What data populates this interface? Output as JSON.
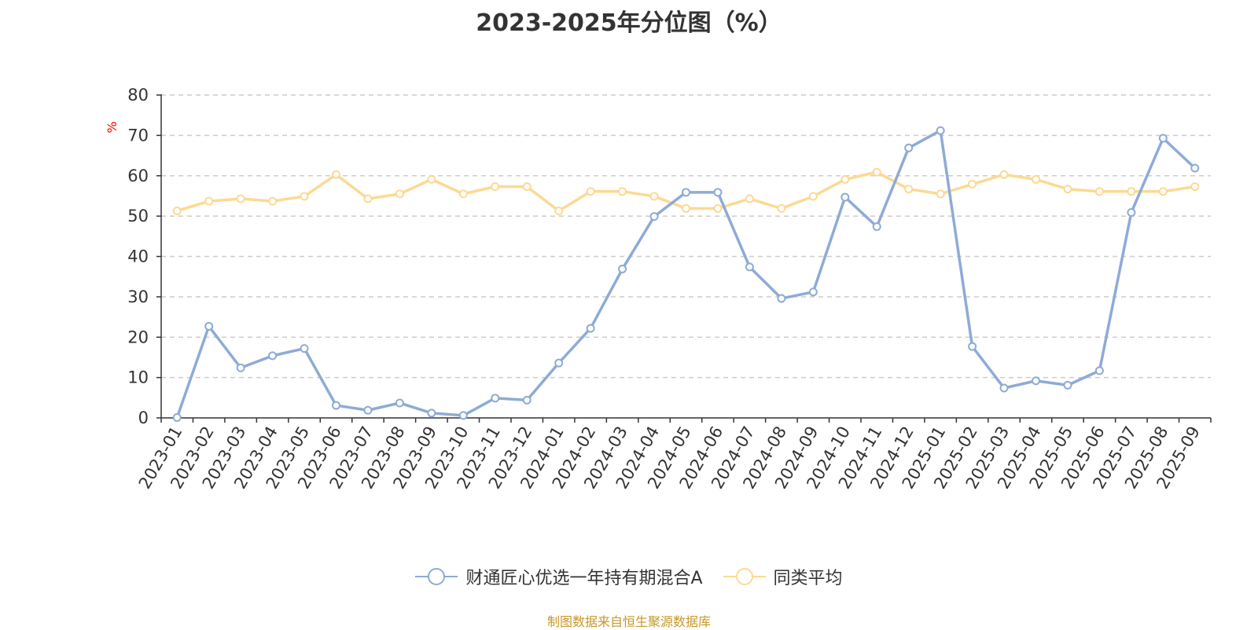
{
  "title": "2023-2025年分位图（%）",
  "source_note": "制图数据来自恒生聚源数据库",
  "colors": {
    "series_a": "#8eabd6",
    "series_b": "#fcd993",
    "axis": "#333333",
    "grid": "#cccccc",
    "unit": "#ff0000"
  },
  "chart_data": {
    "type": "line",
    "title": "2023-2025年分位图（%）",
    "ylabel": "%",
    "xlabel": "",
    "ylim": [
      0,
      80
    ],
    "yticks": [
      0,
      10,
      20,
      30,
      40,
      50,
      60,
      70,
      80
    ],
    "grid": true,
    "legend_position": "bottom",
    "categories": [
      "2023-01",
      "2023-02",
      "2023-03",
      "2023-04",
      "2023-05",
      "2023-06",
      "2023-07",
      "2023-08",
      "2023-09",
      "2023-10",
      "2023-11",
      "2023-12",
      "2024-01",
      "2024-02",
      "2024-03",
      "2024-04",
      "2024-05",
      "2024-06",
      "2024-07",
      "2024-08",
      "2024-09",
      "2024-10",
      "2024-11",
      "2024-12",
      "2025-01",
      "2025-02",
      "2025-03",
      "2025-04",
      "2025-05",
      "2025-06",
      "2025-07",
      "2025-08",
      "2025-09"
    ],
    "series": [
      {
        "name": "财通匠心优选一年持有期混合A",
        "color": "#8eabd6",
        "values": [
          0.1,
          22.7,
          12.4,
          15.4,
          17.2,
          3.1,
          1.9,
          3.7,
          1.2,
          0.6,
          4.9,
          4.4,
          13.6,
          22.2,
          36.9,
          49.9,
          55.9,
          55.9,
          37.4,
          29.6,
          31.2,
          54.7,
          47.4,
          66.9,
          71.2,
          17.7,
          7.4,
          9.2,
          8.1,
          11.7,
          50.9,
          69.3,
          61.9
        ]
      },
      {
        "name": "同类平均",
        "color": "#fcd993",
        "values": [
          51.3,
          53.7,
          54.3,
          53.7,
          54.9,
          60.3,
          54.3,
          55.5,
          59.1,
          55.5,
          57.3,
          57.3,
          51.3,
          56.1,
          56.1,
          54.9,
          51.9,
          51.9,
          54.3,
          51.9,
          54.9,
          59.1,
          60.9,
          56.7,
          55.5,
          57.9,
          60.3,
          59.1,
          56.7,
          56.1,
          56.1,
          56.1,
          57.3
        ]
      }
    ]
  }
}
